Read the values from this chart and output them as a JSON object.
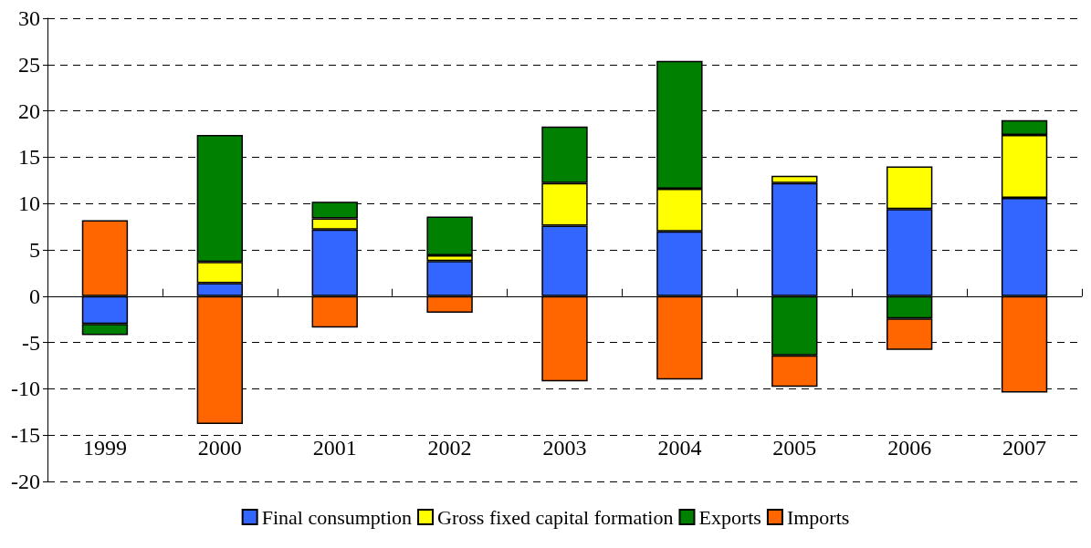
{
  "chart_data": {
    "type": "bar",
    "stacked": true,
    "categories": [
      "1999",
      "2000",
      "2001",
      "2002",
      "2003",
      "2004",
      "2005",
      "2006",
      "2007"
    ],
    "series": [
      {
        "name": "Final consumption",
        "color": "#3366ff",
        "values": [
          -3.0,
          1.4,
          7.2,
          3.8,
          7.6,
          7.0,
          12.2,
          9.4,
          10.6
        ]
      },
      {
        "name": "Gross fixed capital formation",
        "color": "#ffff00",
        "values": [
          null,
          2.3,
          1.2,
          0.6,
          4.6,
          4.6,
          0.8,
          4.6,
          6.8
        ]
      },
      {
        "name": "Exports",
        "color": "#008000",
        "values": [
          -1.2,
          13.7,
          1.8,
          4.2,
          6.1,
          13.8,
          -6.4,
          -2.4,
          1.6
        ]
      },
      {
        "name": "Imports",
        "color": "#ff6600",
        "values": [
          8.2,
          -13.8,
          -3.4,
          -1.8,
          -9.2,
          -9.0,
          -3.4,
          -3.4,
          -10.4
        ]
      }
    ],
    "ylim": [
      -20,
      30
    ],
    "yticks": [
      -20,
      -15,
      -10,
      -5,
      0,
      5,
      10,
      15,
      20,
      25,
      30
    ],
    "grid": "y",
    "legend": "bottom"
  }
}
